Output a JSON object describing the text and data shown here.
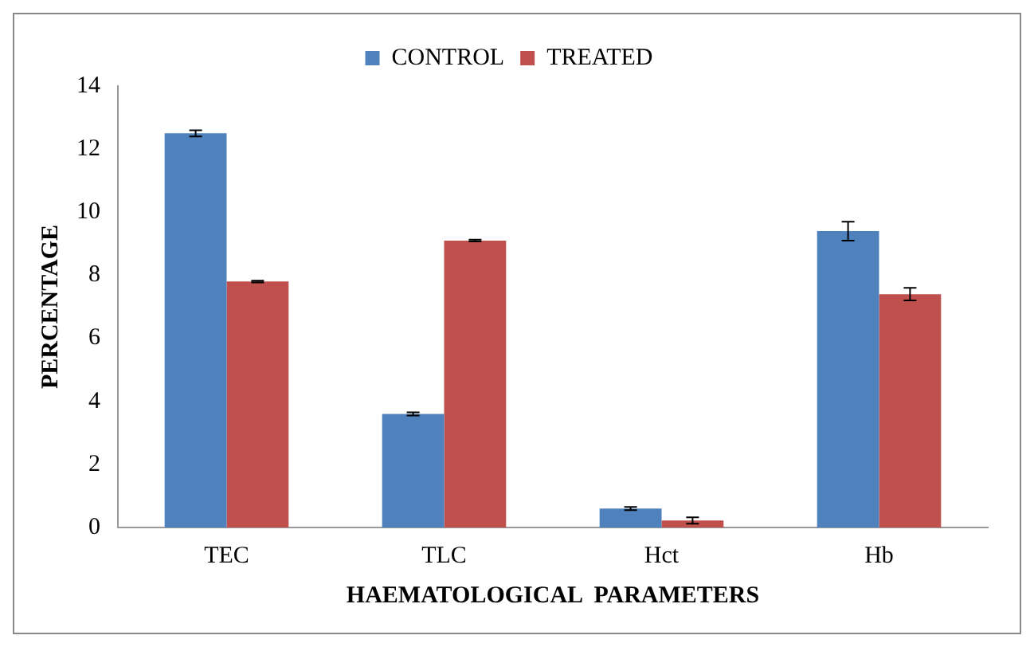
{
  "chart_data": {
    "type": "bar",
    "xlabel": "HAEMATOLOGICAL  PARAMETERS",
    "ylabel": "PERCENTAGE",
    "categories": [
      "TEC",
      "TLC",
      "Hct",
      "Hb"
    ],
    "series": [
      {
        "name": "CONTROL",
        "color": "#4f81bd",
        "values": [
          12.5,
          3.6,
          0.6,
          9.4
        ],
        "errors": [
          0.1,
          0.05,
          0.05,
          0.3
        ]
      },
      {
        "name": "TREATED",
        "color": "#c0504d",
        "values": [
          7.8,
          9.1,
          0.22,
          7.4
        ],
        "errors": [
          0.03,
          0.03,
          0.1,
          0.2
        ]
      }
    ],
    "ylim": [
      0,
      14
    ],
    "yticks": [
      0,
      2,
      4,
      6,
      8,
      10,
      12,
      14
    ],
    "grid": false,
    "legend": "top"
  }
}
